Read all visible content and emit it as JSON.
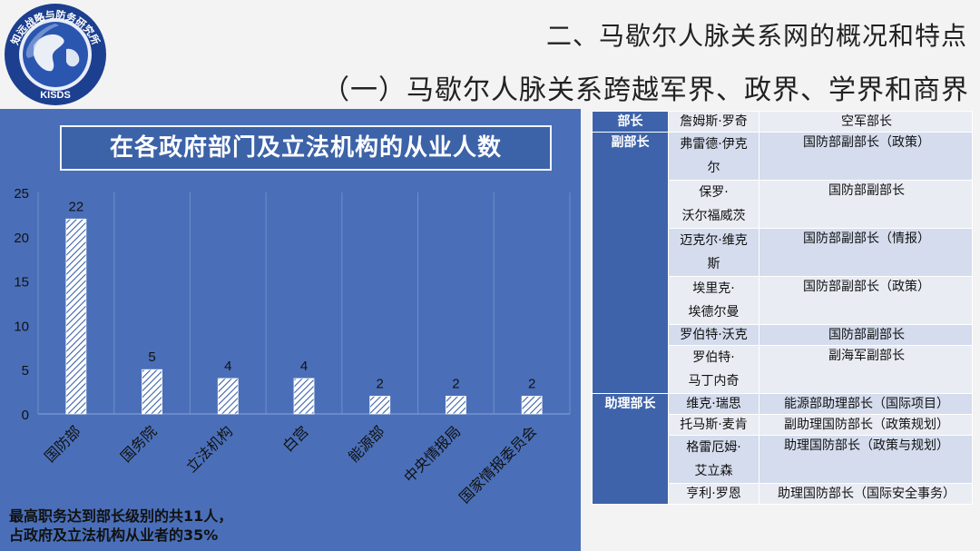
{
  "logo": {
    "ring_text": "知远战略与防务研究所",
    "acronym": "KISDS"
  },
  "header": {
    "section_title": "二、马歇尔人脉关系网的概况和特点",
    "subsection_title": "（一）马歇尔人脉关系跨越军界、政界、学界和商界"
  },
  "colors": {
    "panel": "#4a6fb8",
    "title_box": "#3c62a8",
    "table_header": "#3e63aa",
    "row_light": "#e9ecf3",
    "row_dark": "#d4dced"
  },
  "chart_data": {
    "type": "bar",
    "title": "在各政府部门及立法机构的从业人数",
    "categories": [
      "国防部",
      "国务院",
      "立法机构",
      "白宫",
      "能源部",
      "中央情报局",
      "国家情报委员会"
    ],
    "values": [
      22,
      5,
      4,
      4,
      2,
      2,
      2
    ],
    "ylim": [
      0,
      25
    ],
    "yticks": [
      0,
      5,
      10,
      15,
      20,
      25
    ],
    "grid": "vertical separators",
    "xlabel": "",
    "ylabel": ""
  },
  "note": {
    "line1": "最高职务达到部长级别的共11人，",
    "line2": "占政府及立法机构从业者的35%"
  },
  "table": {
    "groups": [
      {
        "category": "部长",
        "rows": [
          {
            "name": [
              "詹姆斯·罗奇"
            ],
            "position": "空军部长"
          }
        ]
      },
      {
        "category": "副部长",
        "rows": [
          {
            "name": [
              "弗雷德·伊克",
              "尔"
            ],
            "position": "国防部副部长（政策）"
          },
          {
            "name": [
              "保罗·",
              "沃尔福威茨"
            ],
            "position": "国防部副部长"
          },
          {
            "name": [
              "迈克尔·维克",
              "斯"
            ],
            "position": "国防部副部长（情报）"
          },
          {
            "name": [
              "埃里克·",
              "埃德尔曼"
            ],
            "position": "国防部副部长（政策）"
          },
          {
            "name": [
              "罗伯特·沃克"
            ],
            "position": "国防部副部长"
          },
          {
            "name": [
              "罗伯特·",
              "马丁内奇"
            ],
            "position": "副海军副部长"
          }
        ]
      },
      {
        "category": "助理部长",
        "rows": [
          {
            "name": [
              "维克·瑞思"
            ],
            "position": "能源部助理部长（国际项目）"
          },
          {
            "name": [
              "托马斯·麦肯"
            ],
            "position": "副助理国防部长（政策规划）"
          },
          {
            "name": [
              "格雷厄姆·",
              "艾立森"
            ],
            "position": "助理国防部长（政策与规划）"
          },
          {
            "name": [
              "亨利·罗恩"
            ],
            "position": "助理国防部长（国际安全事务）"
          }
        ]
      }
    ]
  }
}
